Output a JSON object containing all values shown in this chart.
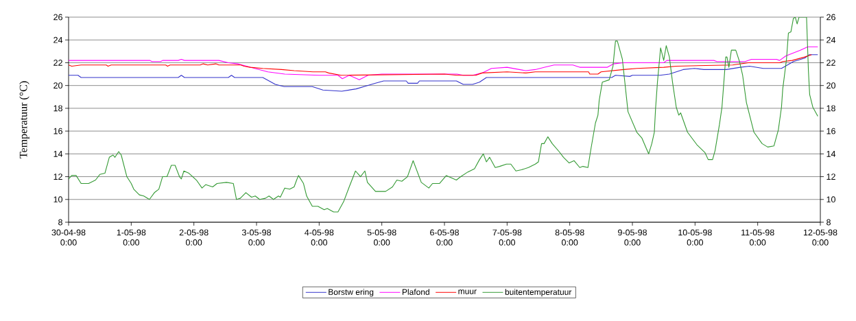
{
  "chart_data": {
    "type": "line",
    "ylabel": "Temperatuur (°C)",
    "xlim": [
      "1998-04-30T00:00",
      "1998-05-12T00:00"
    ],
    "xticks": [
      {
        "value": "1998-04-30T00:00",
        "label": "30-04-98 0:00"
      },
      {
        "value": "1998-05-01T00:00",
        "label": "1-05-98 0:00"
      },
      {
        "value": "1998-05-02T00:00",
        "label": "2-05-98 0:00"
      },
      {
        "value": "1998-05-03T00:00",
        "label": "3-05-98 0:00"
      },
      {
        "value": "1998-05-04T00:00",
        "label": "4-05-98 0:00"
      },
      {
        "value": "1998-05-05T00:00",
        "label": "5-05-98 0:00"
      },
      {
        "value": "1998-05-06T00:00",
        "label": "6-05-98 0:00"
      },
      {
        "value": "1998-05-07T00:00",
        "label": "7-05-98 0:00"
      },
      {
        "value": "1998-05-08T00:00",
        "label": "8-05-98 0:00"
      },
      {
        "value": "1998-05-09T00:00",
        "label": "9-05-98 0:00"
      },
      {
        "value": "1998-05-10T00:00",
        "label": "10-05-98 0:00"
      },
      {
        "value": "1998-05-11T00:00",
        "label": "11-05-98 0:00"
      },
      {
        "value": "1998-05-12T00:00",
        "label": "12-05-98 0:00"
      }
    ],
    "ylim": [
      8,
      26
    ],
    "yticks": [
      8,
      10,
      12,
      14,
      16,
      18,
      20,
      22,
      24,
      26
    ],
    "y2lim": [
      8,
      26
    ],
    "y2ticks": [
      8,
      10,
      12,
      14,
      16,
      18,
      20,
      22,
      24,
      26
    ],
    "grid": "y",
    "legend": "bottom",
    "marker": "none",
    "line_style": "solid",
    "series": [
      {
        "name": "Borstw ering",
        "color": "#3333cc",
        "x": [
          "1998-04-30T00:00",
          "1998-04-30T03:36",
          "1998-04-30T04:48",
          "1998-05-01T18:00",
          "1998-05-01T19:12",
          "1998-05-01T20:24",
          "1998-05-02T13:12",
          "1998-05-02T14:24",
          "1998-05-02T15:36",
          "1998-05-02T16:48",
          "1998-05-03T02:24",
          "1998-05-03T04:48",
          "1998-05-03T07:12",
          "1998-05-03T10:34",
          "1998-05-03T21:22",
          "1998-05-04T01:26",
          "1998-05-04T08:38",
          "1998-05-04T14:10",
          "1998-05-04T18:29",
          "1998-05-04T21:36",
          "1998-05-05T00:43",
          "1998-05-05T09:22",
          "1998-05-05T10:05",
          "1998-05-05T13:41",
          "1998-05-05T14:24",
          "1998-05-06T04:34",
          "1998-05-06T07:12",
          "1998-05-06T10:48",
          "1998-05-06T13:26",
          "1998-05-06T16:05",
          "1998-05-08T16:05",
          "1998-05-08T17:31",
          "1998-05-08T23:02",
          "1998-05-09T00:00",
          "1998-05-09T10:34",
          "1998-05-09T14:10",
          "1998-05-09T19:26",
          "1998-05-09T23:46",
          "1998-05-10T03:22",
          "1998-05-10T12:00",
          "1998-05-10T17:17",
          "1998-05-10T20:53",
          "1998-05-11T02:10",
          "1998-05-11T09:07",
          "1998-05-11T13:41",
          "1998-05-11T18:00",
          "1998-05-11T19:41",
          "1998-05-11T23:02"
        ],
        "values": [
          20.9,
          20.9,
          20.7,
          20.7,
          20.9,
          20.7,
          20.7,
          20.9,
          20.7,
          20.7,
          20.7,
          20.4,
          20.1,
          19.9,
          19.9,
          19.6,
          19.5,
          19.7,
          20.0,
          20.2,
          20.4,
          20.4,
          20.2,
          20.2,
          20.4,
          20.4,
          20.1,
          20.1,
          20.3,
          20.7,
          20.7,
          20.9,
          20.8,
          20.9,
          20.9,
          21.0,
          21.4,
          21.5,
          21.4,
          21.4,
          21.6,
          21.7,
          21.5,
          21.5,
          22.1,
          22.4,
          22.7,
          22.7
        ]
      },
      {
        "name": "Plafond",
        "color": "#ff00ff",
        "x": [
          "1998-04-30T00:00",
          "1998-05-01T07:12",
          "1998-05-01T07:55",
          "1998-05-01T11:17",
          "1998-05-01T12:00",
          "1998-05-01T18:00",
          "1998-05-01T19:12",
          "1998-05-01T20:24",
          "1998-05-02T09:36",
          "1998-05-02T13:12",
          "1998-05-02T16:48",
          "1998-05-02T21:36",
          "1998-05-03T04:19",
          "1998-05-03T10:48",
          "1998-05-04T00:00",
          "1998-05-04T07:12",
          "1998-05-04T08:53",
          "1998-05-04T11:31",
          "1998-05-04T15:22",
          "1998-05-04T18:43",
          "1998-05-05T00:00",
          "1998-05-06T04:48",
          "1998-05-06T07:12",
          "1998-05-06T10:48",
          "1998-05-06T14:24",
          "1998-05-06T18:00",
          "1998-05-07T00:00",
          "1998-05-07T07:12",
          "1998-05-07T10:48",
          "1998-05-07T14:24",
          "1998-05-07T18:00",
          "1998-05-08T01:12",
          "1998-05-08T03:50",
          "1998-05-08T14:24",
          "1998-05-08T16:48",
          "1998-05-08T20:24",
          "1998-05-09T12:00",
          "1998-05-09T13:12",
          "1998-05-10T07:12",
          "1998-05-10T08:24",
          "1998-05-10T19:12",
          "1998-05-10T21:36",
          "1998-05-11T07:12",
          "1998-05-11T08:24",
          "1998-05-11T10:48",
          "1998-05-11T16:19",
          "1998-05-11T19:12",
          "1998-05-11T23:02"
        ],
        "values": [
          22.2,
          22.2,
          22.1,
          22.1,
          22.2,
          22.2,
          22.3,
          22.2,
          22.2,
          22.0,
          21.9,
          21.6,
          21.2,
          21.0,
          20.9,
          20.9,
          20.6,
          20.9,
          20.5,
          20.9,
          21.0,
          21.0,
          20.9,
          20.9,
          21.1,
          21.5,
          21.6,
          21.3,
          21.4,
          21.6,
          21.8,
          21.8,
          21.6,
          21.6,
          21.9,
          22.0,
          22.0,
          22.2,
          22.2,
          22.1,
          22.1,
          22.3,
          22.3,
          22.2,
          22.6,
          23.1,
          23.4,
          23.4
        ]
      },
      {
        "name": "muur",
        "color": "#ff0000",
        "x": [
          "1998-04-30T00:00",
          "1998-04-30T01:12",
          "1998-04-30T04:48",
          "1998-04-30T14:24",
          "1998-04-30T15:07",
          "1998-04-30T16:19",
          "1998-05-01T13:12",
          "1998-05-01T13:55",
          "1998-05-01T14:53",
          "1998-05-02T02:24",
          "1998-05-02T03:36",
          "1998-05-02T05:17",
          "1998-05-02T08:24",
          "1998-05-02T09:36",
          "1998-05-02T18:00",
          "1998-05-02T19:12",
          "1998-05-02T21:36",
          "1998-05-03T02:24",
          "1998-05-03T09:36",
          "1998-05-03T14:24",
          "1998-05-03T21:36",
          "1998-05-04T02:24",
          "1998-05-04T03:36",
          "1998-05-04T08:24",
          "1998-05-06T00:00",
          "1998-05-06T04:48",
          "1998-05-06T12:00",
          "1998-05-06T14:24",
          "1998-05-07T00:00",
          "1998-05-07T07:12",
          "1998-05-07T10:48",
          "1998-05-08T07:12",
          "1998-05-08T07:41",
          "1998-05-08T10:48",
          "1998-05-08T12:00",
          "1998-05-08T20:38",
          "1998-05-09T01:41",
          "1998-05-09T12:00",
          "1998-05-09T16:48",
          "1998-05-10T14:24",
          "1998-05-10T20:24",
          "1998-05-11T08:24",
          "1998-05-11T09:36",
          "1998-05-11T13:12",
          "1998-05-11T18:00",
          "1998-05-11T20:38"
        ],
        "values": [
          21.8,
          21.7,
          21.8,
          21.8,
          21.7,
          21.8,
          21.8,
          21.7,
          21.8,
          21.8,
          21.9,
          21.8,
          21.9,
          21.8,
          21.8,
          21.7,
          21.6,
          21.5,
          21.4,
          21.3,
          21.2,
          21.2,
          21.1,
          20.9,
          21.0,
          20.9,
          20.9,
          21.1,
          21.2,
          21.1,
          21.2,
          21.2,
          21.0,
          21.0,
          21.2,
          21.4,
          21.5,
          21.6,
          21.7,
          21.8,
          22.0,
          22.0,
          22.1,
          22.2,
          22.5,
          22.7
        ]
      },
      {
        "name": "buitentemperatuur",
        "color": "#339933",
        "x": [
          "1998-04-30T00:00",
          "1998-04-30T01:12",
          "1998-04-30T02:53",
          "1998-04-30T04:48",
          "1998-04-30T07:41",
          "1998-04-30T10:19",
          "1998-04-30T12:00",
          "1998-04-30T13:55",
          "1998-04-30T15:36",
          "1998-04-30T17:02",
          "1998-04-30T17:46",
          "1998-04-30T19:12",
          "1998-04-30T20:10",
          "1998-04-30T22:19",
          "1998-05-01T00:00",
          "1998-05-01T00:58",
          "1998-05-01T03:07",
          "1998-05-01T04:48",
          "1998-05-01T06:58",
          "1998-05-01T08:53",
          "1998-05-01T10:34",
          "1998-05-01T12:00",
          "1998-05-01T13:41",
          "1998-05-01T15:22",
          "1998-05-01T16:48",
          "1998-05-01T18:29",
          "1998-05-01T19:12",
          "1998-05-01T20:10",
          "1998-05-01T22:05",
          "1998-05-02T00:58",
          "1998-05-02T03:07",
          "1998-05-02T04:34",
          "1998-05-02T07:12",
          "1998-05-02T08:53",
          "1998-05-02T12:29",
          "1998-05-02T15:07",
          "1998-05-02T16:19",
          "1998-05-02T17:46",
          "1998-05-02T19:55",
          "1998-05-02T22:05",
          "1998-05-02T23:31",
          "1998-05-03T01:12",
          "1998-05-03T03:22",
          "1998-05-03T04:48",
          "1998-05-03T06:29",
          "1998-05-03T08:24",
          "1998-05-03T09:07",
          "1998-05-03T10:48",
          "1998-05-03T12:43",
          "1998-05-03T14:24",
          "1998-05-03T15:22",
          "1998-05-03T16:05",
          "1998-05-03T18:00",
          "1998-05-03T19:12",
          "1998-05-03T21:22",
          "1998-05-03T23:31",
          "1998-05-04T01:55",
          "1998-05-04T03:07",
          "1998-05-04T05:31",
          "1998-05-04T07:12",
          "1998-05-04T09:22",
          "1998-05-04T11:31",
          "1998-05-04T13:55",
          "1998-05-04T15:50",
          "1998-05-04T17:31",
          "1998-05-04T18:29",
          "1998-05-04T21:36",
          "1998-05-05T01:26",
          "1998-05-05T04:05",
          "1998-05-05T05:46",
          "1998-05-05T07:41",
          "1998-05-05T09:50",
          "1998-05-05T12:00",
          "1998-05-05T15:07",
          "1998-05-05T18:00",
          "1998-05-05T19:26",
          "1998-05-05T22:05",
          "1998-05-06T00:43",
          "1998-05-06T04:34",
          "1998-05-06T06:14",
          "1998-05-06T08:53",
          "1998-05-06T11:31",
          "1998-05-06T13:26",
          "1998-05-06T14:53",
          "1998-05-06T16:05",
          "1998-05-06T17:17",
          "1998-05-06T19:26",
          "1998-05-06T21:07",
          "1998-05-06T23:46",
          "1998-05-07T01:26",
          "1998-05-07T03:22",
          "1998-05-07T05:31",
          "1998-05-07T08:10",
          "1998-05-07T10:48",
          "1998-05-07T12:00",
          "1998-05-07T13:12",
          "1998-05-07T14:10",
          "1998-05-07T15:36",
          "1998-05-07T17:17",
          "1998-05-07T19:55",
          "1998-05-07T21:36",
          "1998-05-07T23:46",
          "1998-05-08T01:41",
          "1998-05-08T03:50",
          "1998-05-08T05:02",
          "1998-05-08T06:58",
          "1998-05-08T08:10",
          "1998-05-08T09:50",
          "1998-05-08T10:48",
          "1998-05-08T11:17",
          "1998-05-08T12:29",
          "1998-05-08T15:07",
          "1998-05-08T16:34",
          "1998-05-08T17:31",
          "1998-05-08T18:14",
          "1998-05-08T20:10",
          "1998-05-08T22:19",
          "1998-05-09T01:41",
          "1998-05-09T03:36",
          "1998-05-09T05:17",
          "1998-05-09T06:14",
          "1998-05-09T07:26",
          "1998-05-09T08:24",
          "1998-05-09T08:53",
          "1998-05-09T09:36",
          "1998-05-09T10:48",
          "1998-05-09T12:00",
          "1998-05-09T12:58",
          "1998-05-09T14:10",
          "1998-05-09T15:22",
          "1998-05-09T16:48",
          "1998-05-09T17:46",
          "1998-05-09T18:29",
          "1998-05-09T21:07",
          "1998-05-10T00:43",
          "1998-05-10T03:50",
          "1998-05-10T05:02",
          "1998-05-10T06:43",
          "1998-05-10T07:41",
          "1998-05-10T09:22",
          "1998-05-10T10:19",
          "1998-05-10T11:46",
          "1998-05-10T12:14",
          "1998-05-10T12:58",
          "1998-05-10T13:55",
          "1998-05-10T15:36",
          "1998-05-10T17:02",
          "1998-05-10T18:14",
          "1998-05-10T19:41",
          "1998-05-10T22:34",
          "1998-05-11T01:41",
          "1998-05-11T03:50",
          "1998-05-11T06:14",
          "1998-05-11T07:55",
          "1998-05-11T09:07",
          "1998-05-11T09:36",
          "1998-05-11T11:02",
          "1998-05-11T11:46",
          "1998-05-11T12:43",
          "1998-05-11T13:41",
          "1998-05-11T14:24",
          "1998-05-11T15:07",
          "1998-05-11T15:50",
          "1998-05-11T18:43",
          "1998-05-11T19:26",
          "1998-05-11T19:55",
          "1998-05-11T21:07",
          "1998-05-11T23:02"
        ],
        "values": [
          11.8,
          12.1,
          12.1,
          11.4,
          11.4,
          11.7,
          12.2,
          12.3,
          13.7,
          13.9,
          13.7,
          14.2,
          13.9,
          12.0,
          11.4,
          10.9,
          10.4,
          10.3,
          10.0,
          10.6,
          10.9,
          12.0,
          12.0,
          13.0,
          13.0,
          12.0,
          11.8,
          12.5,
          12.3,
          11.7,
          11.0,
          11.3,
          11.1,
          11.4,
          11.5,
          11.4,
          10.0,
          10.1,
          10.6,
          10.2,
          10.3,
          10.0,
          10.1,
          10.3,
          10.0,
          10.3,
          10.2,
          11.0,
          10.9,
          11.1,
          11.7,
          12.1,
          11.4,
          10.3,
          9.4,
          9.4,
          9.1,
          9.2,
          8.9,
          8.9,
          9.8,
          11.1,
          12.5,
          12.0,
          12.5,
          11.5,
          10.7,
          10.7,
          11.1,
          11.7,
          11.6,
          12.0,
          13.4,
          11.5,
          11.0,
          11.4,
          11.4,
          12.1,
          11.7,
          12.0,
          12.4,
          12.7,
          13.5,
          14.0,
          13.3,
          13.7,
          12.8,
          12.9,
          13.1,
          13.1,
          12.5,
          12.6,
          12.8,
          13.1,
          13.3,
          14.9,
          14.9,
          15.5,
          14.9,
          14.2,
          13.7,
          13.2,
          13.4,
          12.8,
          12.9,
          12.8,
          14.5,
          16.7,
          17.4,
          18.7,
          20.3,
          20.5,
          21.7,
          23.9,
          23.9,
          22.3,
          17.7,
          15.9,
          15.4,
          14.5,
          14.0,
          14.9,
          15.9,
          18.0,
          20.3,
          23.3,
          22.2,
          23.5,
          22.5,
          20.3,
          18.1,
          17.4,
          17.6,
          15.9,
          14.8,
          14.1,
          13.5,
          13.5,
          14.3,
          16.6,
          18.1,
          22.5,
          22.5,
          21.6,
          23.1,
          23.1,
          22.1,
          20.9,
          18.5,
          15.9,
          14.9,
          14.6,
          14.7,
          16.1,
          18.1,
          19.7,
          22.3,
          24.6,
          24.7,
          25.9,
          26,
          25.4,
          26,
          26,
          21.3,
          19.2,
          18.1,
          17.3
        ]
      }
    ]
  }
}
